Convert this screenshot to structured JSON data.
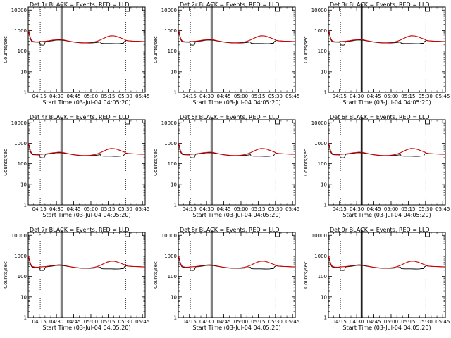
{
  "figure": {
    "colors": {
      "events": "#000000",
      "lld": "#d00000",
      "frame": "#000000"
    }
  },
  "chart_data": [
    {
      "type": "line",
      "title": "Det 1r BLACK = Events, RED = LLD",
      "xlabel": "Start Time (03-Jul-04 04:05:20)",
      "ylabel": "Counts/sec"
    },
    {
      "type": "line",
      "title": "Det 2r BLACK = Events, RED = LLD",
      "xlabel": "Start Time (03-Jul-04 04:05:20)",
      "ylabel": "Counts/sec"
    },
    {
      "type": "line",
      "title": "Det 3r BLACK = Events, RED = LLD",
      "xlabel": "Start Time (03-Jul-04 04:05:20)",
      "ylabel": "Counts/sec"
    },
    {
      "type": "line",
      "title": "Det 4r BLACK = Events, RED = LLD",
      "xlabel": "Start Time (03-Jul-04 04:05:20)",
      "ylabel": "Counts/sec"
    },
    {
      "type": "line",
      "title": "Det 5r BLACK = Events, RED = LLD",
      "xlabel": "Start Time (03-Jul-04 04:05:20)",
      "ylabel": "Counts/sec"
    },
    {
      "type": "line",
      "title": "Det 6r BLACK = Events, RED = LLD",
      "xlabel": "Start Time (03-Jul-04 04:05:20)",
      "ylabel": "Counts/sec"
    },
    {
      "type": "line",
      "title": "Det 7r BLACK = Events, RED = LLD",
      "xlabel": "Start Time (03-Jul-04 04:05:20)",
      "ylabel": "Counts/sec"
    },
    {
      "type": "line",
      "title": "Det 8r BLACK = Events, RED = LLD",
      "xlabel": "Start Time (03-Jul-04 04:05:20)",
      "ylabel": "Counts/sec"
    },
    {
      "type": "line",
      "title": "Det 9r BLACK = Events, RED = LLD",
      "xlabel": "Start Time (03-Jul-04 04:05:20)",
      "ylabel": "Counts/sec"
    }
  ],
  "axes": {
    "x_unit": "minutes since 04:05:20",
    "xlim": [
      0,
      102
    ],
    "ylim": [
      1,
      14000
    ],
    "y_scale": "log",
    "x_ticks": [
      {
        "value": 9.67,
        "label": "04:15"
      },
      {
        "value": 24.67,
        "label": "04:30"
      },
      {
        "value": 39.67,
        "label": "04:45"
      },
      {
        "value": 54.67,
        "label": "05:00"
      },
      {
        "value": 69.67,
        "label": "05:15"
      },
      {
        "value": 84.67,
        "label": "05:30"
      },
      {
        "value": 99.67,
        "label": "05:45"
      }
    ],
    "y_ticks": [
      {
        "value": 1,
        "label": "1"
      },
      {
        "value": 10,
        "label": "10"
      },
      {
        "value": 100,
        "label": "100"
      },
      {
        "value": 1000,
        "label": "1000"
      },
      {
        "value": 10000,
        "label": "10000"
      }
    ]
  },
  "markers": {
    "dotted_x": [
      10.5,
      85
    ],
    "solid_x": [
      28.5,
      29.5
    ]
  },
  "series_shape": {
    "events": {
      "name": "Events",
      "x": [
        0,
        1,
        2,
        3,
        4,
        6,
        9,
        10,
        10.5,
        13,
        14,
        15,
        18,
        21,
        24,
        27,
        30,
        33,
        36,
        39,
        42,
        45,
        48,
        51,
        54,
        57,
        60,
        62,
        63,
        63.5,
        66,
        69,
        72,
        75,
        78,
        80,
        81,
        83,
        84,
        85,
        85.5,
        88,
        91,
        94,
        97,
        100,
        102
      ],
      "y": [
        1000,
        650,
        380,
        300,
        280,
        275,
        272,
        270,
        200,
        195,
        200,
        290,
        305,
        320,
        340,
        350,
        340,
        320,
        300,
        280,
        265,
        255,
        250,
        248,
        250,
        255,
        265,
        275,
        280,
        240,
        235,
        235,
        235,
        232,
        230,
        235,
        240,
        240,
        300,
        320,
        330,
        320,
        310,
        305,
        300,
        295,
        290
      ]
    },
    "lld": {
      "name": "LLD",
      "x": [
        0,
        1,
        2,
        3,
        4,
        6,
        9,
        10,
        12,
        15,
        18,
        21,
        24,
        27,
        30,
        33,
        36,
        39,
        42,
        45,
        48,
        51,
        54,
        57,
        60,
        63,
        66,
        69,
        72,
        75,
        78,
        81,
        84,
        85,
        87,
        90,
        93,
        96,
        99,
        102
      ],
      "y": [
        1050,
        700,
        420,
        330,
        300,
        285,
        285,
        290,
        295,
        305,
        320,
        340,
        355,
        370,
        360,
        330,
        305,
        285,
        270,
        260,
        255,
        255,
        260,
        275,
        300,
        350,
        420,
        500,
        560,
        550,
        500,
        430,
        370,
        340,
        320,
        310,
        305,
        300,
        295,
        290
      ]
    }
  }
}
